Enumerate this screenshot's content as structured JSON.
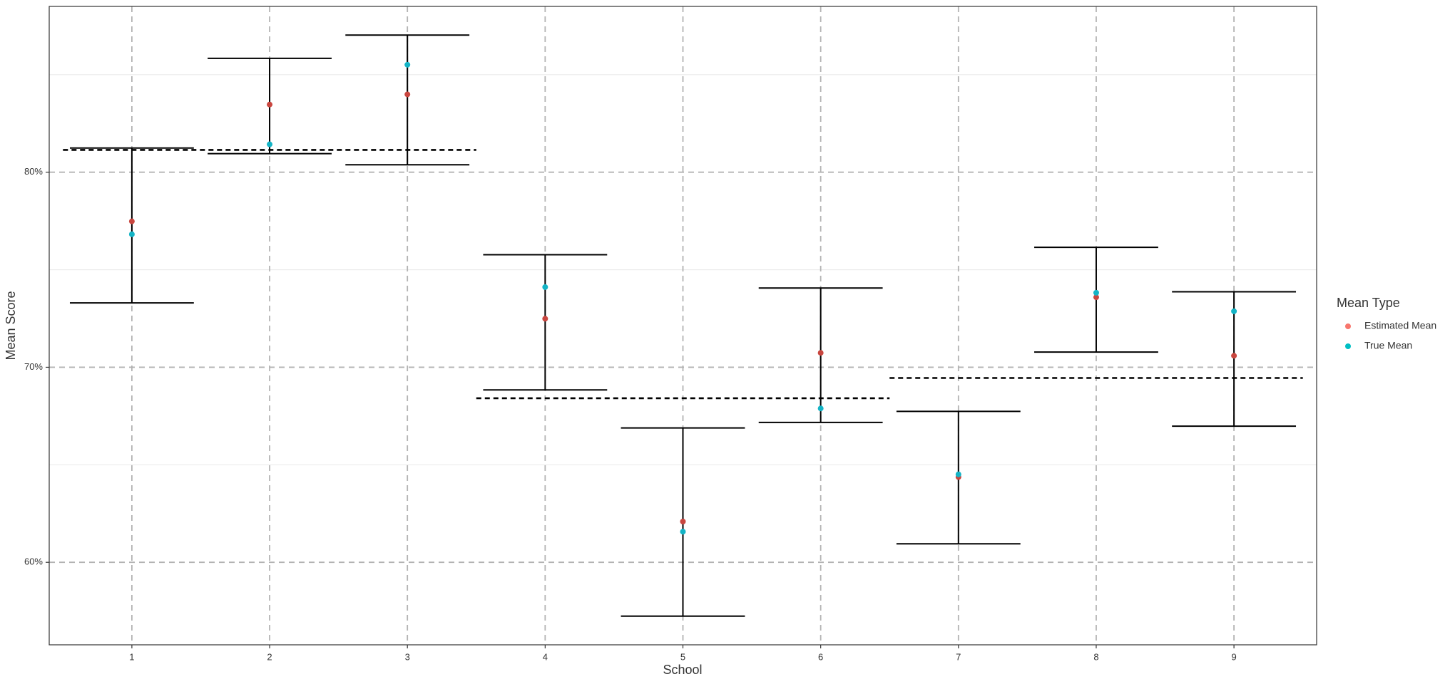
{
  "chart_data": {
    "type": "errorbar",
    "xlabel": "School",
    "ylabel": "Mean Score",
    "legend_title": "Mean Type",
    "legend": "right",
    "x": [
      1,
      2,
      3,
      4,
      5,
      6,
      7,
      8,
      9
    ],
    "xlim": [
      0.4,
      9.6
    ],
    "xticks": [
      1,
      2,
      3,
      4,
      5,
      6,
      7,
      8,
      9
    ],
    "ylim": [
      55.77,
      88.5
    ],
    "yticks": [
      {
        "value": 60,
        "label": "60%"
      },
      {
        "value": 70,
        "label": "70%"
      },
      {
        "value": 80,
        "label": "80%"
      }
    ],
    "yminor_ticks": [
      65,
      75,
      85
    ],
    "grid": true,
    "intervals": {
      "upper": [
        81.24,
        85.84,
        87.03,
        75.77,
        66.89,
        74.06,
        67.74,
        76.15,
        73.87
      ],
      "lower": [
        73.3,
        80.95,
        80.38,
        68.84,
        57.24,
        67.17,
        60.95,
        70.78,
        66.98
      ]
    },
    "series": [
      {
        "name": "Estimated Mean",
        "color": "#c9463f",
        "legend_color": "#F8766D",
        "values": [
          77.48,
          83.47,
          83.99,
          72.49,
          62.09,
          70.74,
          64.37,
          73.59,
          70.59
        ]
      },
      {
        "name": "True Mean",
        "color": "#14b4c6",
        "legend_color": "#00BFC4",
        "values": [
          76.82,
          81.43,
          85.51,
          74.11,
          61.57,
          67.89,
          64.51,
          73.82,
          72.87
        ]
      }
    ],
    "group_means": [
      {
        "value": 81.14,
        "xrange": [
          0.5,
          3.5
        ]
      },
      {
        "value": 68.41,
        "xrange": [
          3.5,
          6.5
        ]
      },
      {
        "value": 69.45,
        "xrange": [
          6.5,
          9.5
        ]
      }
    ]
  }
}
